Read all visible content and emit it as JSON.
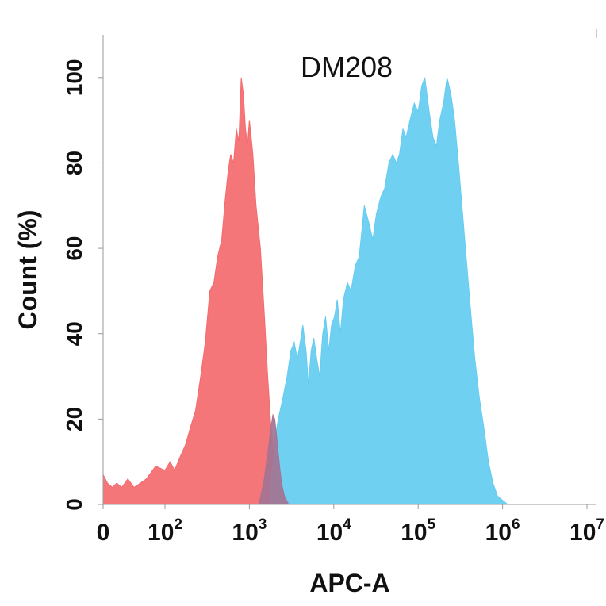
{
  "chart_data": {
    "type": "area",
    "title": "DM208",
    "xlabel": "APC-A",
    "ylabel": "Count (%)",
    "ylim": [
      0,
      110
    ],
    "x_scale": "log",
    "x_ticks": [
      {
        "base": "0",
        "exp": ""
      },
      {
        "base": "10",
        "exp": "2"
      },
      {
        "base": "10",
        "exp": "3"
      },
      {
        "base": "10",
        "exp": "4"
      },
      {
        "base": "10",
        "exp": "5"
      },
      {
        "base": "10",
        "exp": "6"
      },
      {
        "base": "10",
        "exp": "7"
      }
    ],
    "y_ticks": [
      "0",
      "20",
      "40",
      "60",
      "80",
      "100"
    ],
    "grid": false,
    "series": [
      {
        "color": "#f46a6d",
        "points": [
          [
            0,
            7
          ],
          [
            7,
            5
          ],
          [
            15,
            4
          ],
          [
            22,
            5
          ],
          [
            30,
            4
          ],
          [
            40,
            6
          ],
          [
            50,
            4
          ],
          [
            60,
            5
          ],
          [
            70,
            6
          ],
          [
            85,
            9
          ],
          [
            100,
            8
          ],
          [
            115,
            10
          ],
          [
            130,
            8
          ],
          [
            150,
            11
          ],
          [
            175,
            14
          ],
          [
            200,
            18
          ],
          [
            230,
            22
          ],
          [
            265,
            30
          ],
          [
            300,
            38
          ],
          [
            340,
            50
          ],
          [
            380,
            52
          ],
          [
            420,
            58
          ],
          [
            470,
            62
          ],
          [
            520,
            72
          ],
          [
            560,
            78
          ],
          [
            600,
            82
          ],
          [
            650,
            80
          ],
          [
            700,
            88
          ],
          [
            750,
            85
          ],
          [
            800,
            100
          ],
          [
            850,
            96
          ],
          [
            900,
            88
          ],
          [
            950,
            84
          ],
          [
            1000,
            90
          ],
          [
            1050,
            86
          ],
          [
            1100,
            82
          ],
          [
            1200,
            70
          ],
          [
            1350,
            60
          ],
          [
            1500,
            45
          ],
          [
            1650,
            30
          ],
          [
            1800,
            18
          ],
          [
            2000,
            10
          ],
          [
            2200,
            5
          ],
          [
            2500,
            2
          ],
          [
            2800,
            1
          ],
          [
            3200,
            0
          ]
        ]
      },
      {
        "color": "#64ccf1",
        "points": [
          [
            1800,
            5
          ],
          [
            2000,
            15
          ],
          [
            2200,
            20
          ],
          [
            2500,
            25
          ],
          [
            2800,
            30
          ],
          [
            3100,
            36
          ],
          [
            3400,
            38
          ],
          [
            3700,
            34
          ],
          [
            4000,
            38
          ],
          [
            4300,
            42
          ],
          [
            4700,
            36
          ],
          [
            5000,
            28
          ],
          [
            5400,
            36
          ],
          [
            5800,
            39
          ],
          [
            6300,
            34
          ],
          [
            6800,
            30
          ],
          [
            7400,
            40
          ],
          [
            8000,
            44
          ],
          [
            8700,
            36
          ],
          [
            9400,
            42
          ],
          [
            10200,
            44
          ],
          [
            11000,
            48
          ],
          [
            12000,
            40
          ],
          [
            13000,
            48
          ],
          [
            14500,
            52
          ],
          [
            16000,
            50
          ],
          [
            18000,
            56
          ],
          [
            20000,
            58
          ],
          [
            23000,
            70
          ],
          [
            26000,
            66
          ],
          [
            29000,
            62
          ],
          [
            32000,
            68
          ],
          [
            36000,
            72
          ],
          [
            40000,
            74
          ],
          [
            45000,
            80
          ],
          [
            50000,
            82
          ],
          [
            55000,
            80
          ],
          [
            60000,
            82
          ],
          [
            66000,
            88
          ],
          [
            72000,
            86
          ],
          [
            80000,
            90
          ],
          [
            90000,
            94
          ],
          [
            100000,
            92
          ],
          [
            110000,
            98
          ],
          [
            120000,
            100
          ],
          [
            135000,
            92
          ],
          [
            150000,
            86
          ],
          [
            165000,
            84
          ],
          [
            180000,
            90
          ],
          [
            200000,
            94
          ],
          [
            220000,
            100
          ],
          [
            245000,
            96
          ],
          [
            270000,
            90
          ],
          [
            300000,
            80
          ],
          [
            330000,
            70
          ],
          [
            370000,
            58
          ],
          [
            420000,
            45
          ],
          [
            470000,
            34
          ],
          [
            530000,
            25
          ],
          [
            600000,
            18
          ],
          [
            680000,
            10
          ],
          [
            770000,
            5
          ],
          [
            870000,
            2
          ],
          [
            1000000,
            1
          ],
          [
            1150000,
            0
          ]
        ]
      },
      {
        "color": "#a37494",
        "points": [
          [
            1300,
            0
          ],
          [
            1400,
            3
          ],
          [
            1500,
            6
          ],
          [
            1600,
            10
          ],
          [
            1700,
            14
          ],
          [
            1800,
            18
          ],
          [
            1900,
            21
          ],
          [
            2000,
            20
          ],
          [
            2100,
            16
          ],
          [
            2250,
            10
          ],
          [
            2400,
            5
          ],
          [
            2600,
            2
          ],
          [
            2900,
            0
          ]
        ]
      }
    ]
  }
}
